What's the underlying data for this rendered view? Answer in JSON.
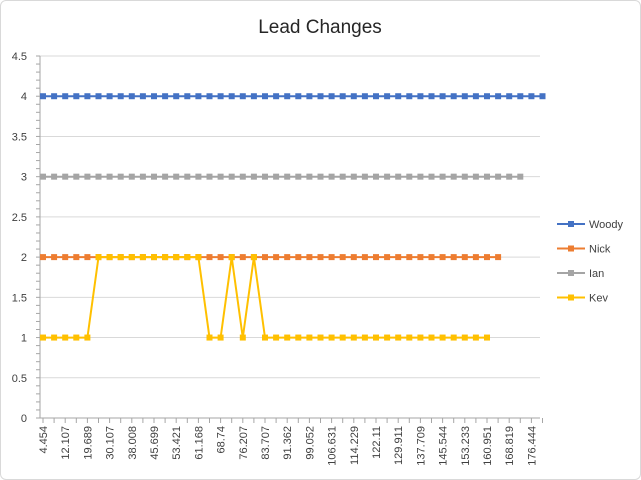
{
  "chart_data": {
    "type": "line",
    "title": "Lead Changes",
    "xlabel": "",
    "ylabel": "",
    "ylim": [
      0,
      4.5
    ],
    "y_ticks": [
      "0",
      "0.5",
      "1",
      "1.5",
      "2",
      "2.5",
      "3",
      "3.5",
      "4",
      "4.5"
    ],
    "x_tick_labels": [
      "4.454",
      "12.107",
      "19.689",
      "30.107",
      "38.008",
      "45.699",
      "53.421",
      "61.168",
      "68.74",
      "76.207",
      "83.707",
      "91.362",
      "99.052",
      "106.631",
      "114.229",
      "122.11",
      "129.911",
      "137.709",
      "145.544",
      "153.233",
      "160.951",
      "168.819",
      "176.444"
    ],
    "grid": true,
    "legend_position": "right",
    "series": [
      {
        "name": "Woody",
        "color": "#4472C4",
        "values": [
          4,
          4,
          4,
          4,
          4,
          4,
          4,
          4,
          4,
          4,
          4,
          4,
          4,
          4,
          4,
          4,
          4,
          4,
          4,
          4,
          4,
          4,
          4,
          4,
          4,
          4,
          4,
          4,
          4,
          4,
          4,
          4,
          4,
          4,
          4,
          4,
          4,
          4,
          4,
          4,
          4,
          4,
          4,
          4,
          4,
          4
        ]
      },
      {
        "name": "Nick",
        "color": "#ED7D31",
        "values": [
          2,
          2,
          2,
          2,
          2,
          2,
          2,
          2,
          2,
          2,
          2,
          2,
          2,
          2,
          2,
          2,
          2,
          2,
          2,
          2,
          2,
          2,
          2,
          2,
          2,
          2,
          2,
          2,
          2,
          2,
          2,
          2,
          2,
          2,
          2,
          2,
          2,
          2,
          2,
          2,
          2,
          2
        ]
      },
      {
        "name": "Ian",
        "color": "#A5A5A5",
        "values": [
          3,
          3,
          3,
          3,
          3,
          3,
          3,
          3,
          3,
          3,
          3,
          3,
          3,
          3,
          3,
          3,
          3,
          3,
          3,
          3,
          3,
          3,
          3,
          3,
          3,
          3,
          3,
          3,
          3,
          3,
          3,
          3,
          3,
          3,
          3,
          3,
          3,
          3,
          3,
          3,
          3,
          3,
          3,
          3
        ]
      },
      {
        "name": "Kev",
        "color": "#FFC000",
        "values": [
          1,
          1,
          1,
          1,
          1,
          2,
          2,
          2,
          2,
          2,
          2,
          2,
          2,
          2,
          2,
          1,
          1,
          2,
          1,
          2,
          1,
          1,
          1,
          1,
          1,
          1,
          1,
          1,
          1,
          1,
          1,
          1,
          1,
          1,
          1,
          1,
          1,
          1,
          1,
          1,
          1
        ]
      }
    ]
  }
}
